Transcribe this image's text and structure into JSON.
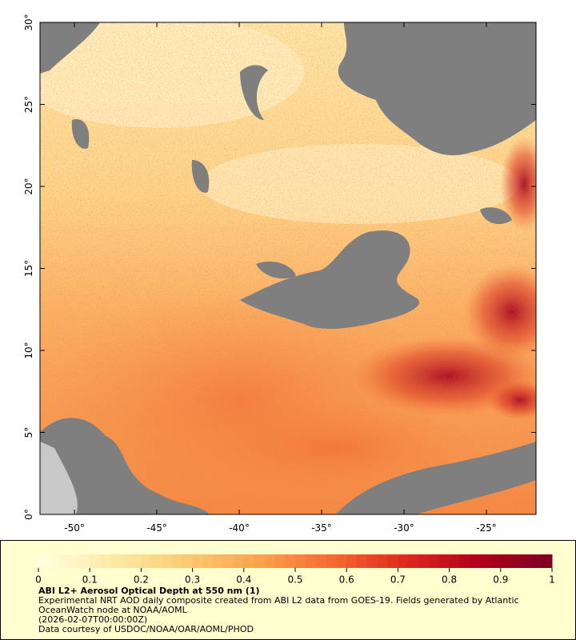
{
  "map": {
    "xlim": [
      -52.09,
      -21.99
    ],
    "ylim": [
      0,
      30
    ],
    "xticks": [
      {
        "value": -50,
        "label": "-50°"
      },
      {
        "value": -45,
        "label": "-45°"
      },
      {
        "value": -40,
        "label": "-40°"
      },
      {
        "value": -35,
        "label": "-35°"
      },
      {
        "value": -30,
        "label": "-30°"
      },
      {
        "value": -25,
        "label": "-25°"
      }
    ],
    "yticks": [
      {
        "value": 0,
        "label": "0°"
      },
      {
        "value": 5,
        "label": "5°"
      },
      {
        "value": 10,
        "label": "10°"
      },
      {
        "value": 15,
        "label": "15°"
      },
      {
        "value": 20,
        "label": "20°"
      },
      {
        "value": 25,
        "label": "25°"
      },
      {
        "value": 30,
        "label": "30°"
      }
    ]
  },
  "legend": {
    "title": "ABI L2+ Aerosol Optical Depth at 550 nm (1)",
    "description": "Experimental NRT AOD daily composite created from ABI L2 data from GOES-19. Fields generated by Atlantic OceanWatch node at NOAA/AOML",
    "timestamp": "(2026-02-07T00:00:00Z)",
    "credit": "Data courtesy of USDOC/NOAA/OAR/AOML/PHOD",
    "colorbar": {
      "lim": [
        0,
        1
      ],
      "ticks": [
        0,
        0.1,
        0.2,
        0.3,
        0.4,
        0.5,
        0.6,
        0.7,
        0.8,
        0.9,
        1
      ],
      "colors": [
        "#ffffe0",
        "#feeaa8",
        "#fdcb74",
        "#fca24c",
        "#f46b32",
        "#dd2a1e",
        "#b1001c",
        "#7a0020"
      ]
    }
  }
}
